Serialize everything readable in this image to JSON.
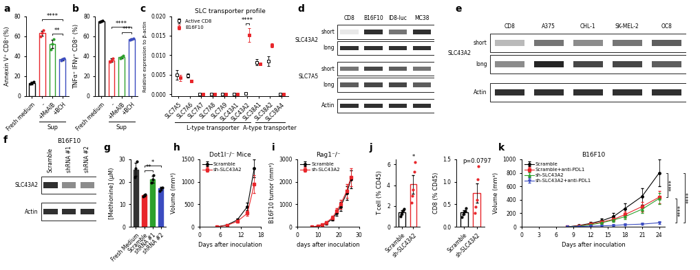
{
  "chart_data": [
    {
      "panel": "a",
      "type": "bar",
      "ylabel": "Annexin V⁺ CD8⁺(%)",
      "categories": [
        "Fresh medium",
        "-",
        "+MeAIB",
        "+BCH"
      ],
      "values": [
        13,
        63,
        52,
        37
      ],
      "errors": [
        1.5,
        2.5,
        4,
        1
      ],
      "points": [
        [
          12,
          13,
          14.5
        ],
        [
          60,
          63,
          66
        ],
        [
          47,
          52,
          57
        ],
        [
          36,
          37,
          38
        ]
      ],
      "colors": [
        "#000000",
        "#e8262b",
        "#2ca02c",
        "#3b4cc0"
      ],
      "ylim": [
        0,
        80
      ],
      "yticks": [
        0,
        20,
        40,
        60,
        80
      ],
      "group_labels": [
        {
          "text": "Sup",
          "from": 1,
          "to": 3
        }
      ],
      "significance": [
        {
          "from": 2,
          "to": 3,
          "text": "**"
        },
        {
          "from": 1,
          "to": 3,
          "text": "****"
        }
      ]
    },
    {
      "panel": "b",
      "type": "bar",
      "ylabel": "TNFα⁺ IFNγ⁺ CD8⁺ (%)",
      "categories": [
        "Fresh medium",
        "-",
        "+MeAIB",
        "+BCH"
      ],
      "values": [
        75,
        36,
        39,
        57
      ],
      "errors": [
        0.5,
        1.5,
        1,
        1
      ],
      "points": [
        [
          74.5,
          75,
          75.5
        ],
        [
          34,
          36,
          38
        ],
        [
          38,
          39,
          40.5
        ],
        [
          56,
          57,
          58
        ]
      ],
      "colors": [
        "#000000",
        "#e8262b",
        "#2ca02c",
        "#3b4cc0"
      ],
      "ylim": [
        0,
        80
      ],
      "yticks": [
        0,
        20,
        40,
        60,
        80
      ],
      "group_labels": [
        {
          "text": "Sup",
          "from": 1,
          "to": 3
        }
      ],
      "significance": [
        {
          "from": 2,
          "to": 3,
          "text": "***"
        },
        {
          "from": 1,
          "to": 3,
          "text": "****"
        }
      ]
    },
    {
      "panel": "c",
      "type": "scatter",
      "title": "SLC transporter profile",
      "ylabel": "Relative expression to β-actin",
      "categories": [
        "SLC7A5",
        "SLC7A6",
        "SLC7A7",
        "SLC7A8",
        "SLC7A9",
        "SLC43A1",
        "SLC43A2",
        "SLC38A1",
        "SLC38A2",
        "SLC38A4"
      ],
      "ylim": [
        -0.0005,
        0.02
      ],
      "yticks": [
        {
          "value": 0,
          "label": "0.000"
        },
        {
          "value": 0.005,
          "label": "0.005"
        },
        {
          "value": 0.01,
          "label": "0.010"
        },
        {
          "value": 0.015,
          "label": "0.015"
        },
        {
          "value": 0.02,
          "label": "0.020"
        }
      ],
      "legend": "upper left",
      "group_labels": [
        {
          "text": "L-type transporter",
          "from": 0,
          "to": 6
        },
        {
          "text": "A-type transporter",
          "from": 7,
          "to": 9
        }
      ],
      "significance": [
        {
          "from": 6,
          "to": 6,
          "text": "****"
        }
      ],
      "series": [
        {
          "name": "Active CD8",
          "color": "#000000",
          "marker": "square",
          "values": [
            0.005,
            0.0048,
            0.0001,
            0.0,
            0.0,
            0.0,
            0.0002,
            0.0082,
            0.0085,
            0.0
          ],
          "errors": [
            0.0012,
            0.0005,
            0.0001,
            0.0,
            0.0,
            0.0,
            0.0001,
            0.0008,
            0.0012,
            0.0
          ]
        },
        {
          "name": "B16F10",
          "color": "#e8262b",
          "marker": "square",
          "values": [
            0.0042,
            0.0034,
            0.0,
            0.0,
            0.0,
            0.0,
            0.0152,
            0.0077,
            0.0125,
            0.0
          ],
          "errors": [
            0.0008,
            0.0003,
            0.0,
            0.0,
            0.0,
            0.0,
            0.0018,
            0.0003,
            0.0005,
            0.0
          ]
        }
      ]
    },
    {
      "panel": "d",
      "type": "blot",
      "lanes": [
        "CD8",
        "B16F10",
        "ID8-luc",
        "MC38"
      ],
      "rows": [
        {
          "group": "SLC43A2",
          "label": "short",
          "intensities": [
            0.1,
            0.9,
            0.6,
            0.9
          ]
        },
        {
          "group": "SLC43A2",
          "label": "long",
          "intensities": [
            0.9,
            0.9,
            0.9,
            0.9
          ]
        },
        {
          "group": "SLC7A5",
          "label": "short",
          "intensities": [
            0.6,
            0.8,
            0.7,
            0.6
          ]
        },
        {
          "group": "SLC7A5",
          "label": "long",
          "intensities": [
            0.7,
            0.8,
            0.8,
            0.7
          ]
        },
        {
          "label": "Actin",
          "intensities": [
            0.9,
            0.9,
            0.9,
            0.9
          ]
        }
      ]
    },
    {
      "panel": "e",
      "type": "blot",
      "lanes": [
        "CD8",
        "A375",
        "CHL-1",
        "SK-MEL-2",
        "OC8"
      ],
      "rows": [
        {
          "group": "SLC43A2",
          "label": "short",
          "intensities": [
            0.3,
            0.6,
            0.5,
            0.6,
            0.7
          ]
        },
        {
          "group": "SLC43A2",
          "label": "long",
          "intensities": [
            0.5,
            0.95,
            0.8,
            0.8,
            0.7
          ]
        },
        {
          "label": "Actin",
          "intensities": [
            0.9,
            0.9,
            0.9,
            0.9,
            0.9
          ]
        }
      ]
    },
    {
      "panel": "f",
      "type": "blot",
      "title": "B16F10",
      "lanes": [
        "Scramble",
        "shRNA #1",
        "shRNA #2"
      ],
      "rows": [
        {
          "label": "SLC43A2",
          "intensities": [
            0.9,
            0.5,
            0.5
          ]
        },
        {
          "label": "Actin",
          "intensities": [
            0.9,
            0.9,
            0.9
          ]
        }
      ]
    },
    {
      "panel": "g",
      "type": "bar",
      "ylabel": "[Methionine] (μM)",
      "categories": [
        "Fresh Medium",
        "Scramble",
        "shRNA #1",
        "shRNA #2"
      ],
      "values": [
        25.5,
        14,
        21,
        17
      ],
      "errors": [
        3,
        0.5,
        1.5,
        0.7
      ],
      "points": [
        [
          22,
          26,
          29
        ],
        [
          13.5,
          14,
          14.5
        ],
        [
          19.5,
          21,
          23
        ],
        [
          16,
          17,
          17.5
        ]
      ],
      "colors": [
        "#333333",
        "#e8262b",
        "#2ca02c",
        "#3b4cc0"
      ],
      "ylim": [
        0,
        30
      ],
      "yticks": [
        0,
        10,
        20,
        30
      ],
      "significance": [
        {
          "from": 1,
          "to": 2,
          "text": "**"
        },
        {
          "from": 1,
          "to": 3,
          "text": "*"
        }
      ]
    },
    {
      "panel": "h",
      "type": "line",
      "title": "Dot1l⁻/⁻ Mice",
      "xlabel": "Days after inoculation",
      "ylabel": "Volume (mm³)",
      "xlim": [
        0,
        18
      ],
      "ylim": [
        0,
        1500
      ],
      "xticks": [
        0,
        6,
        12,
        18
      ],
      "yticks": [
        0,
        500,
        1000,
        1500
      ],
      "legend": "upper left",
      "series": [
        {
          "name": "Scramble",
          "color": "#000000",
          "marker": "circle",
          "x": [
            5,
            8,
            11,
            14,
            16
          ],
          "values": [
            0,
            40,
            150,
            450,
            1300
          ],
          "errors": [
            0,
            10,
            30,
            80,
            200
          ]
        },
        {
          "name": "sh-SLC43A2",
          "color": "#e8262b",
          "marker": "square",
          "x": [
            5,
            8,
            11,
            14,
            16
          ],
          "values": [
            0,
            30,
            120,
            300,
            950
          ],
          "errors": [
            0,
            10,
            30,
            60,
            200
          ]
        }
      ]
    },
    {
      "panel": "i",
      "type": "line",
      "title": "Rag1⁻/⁻",
      "xlabel": "days after inoculation",
      "ylabel": "B16F10 tumor (mm³)",
      "xlim": [
        0,
        30
      ],
      "ylim": [
        0,
        3000
      ],
      "xticks": [
        0,
        10,
        20,
        30
      ],
      "yticks": [
        0,
        1000,
        2000,
        3000
      ],
      "legend": "upper left",
      "series": [
        {
          "name": "Scramble",
          "color": "#000000",
          "marker": "circle",
          "x": [
            7,
            10,
            12,
            14,
            17,
            19,
            21,
            24,
            26
          ],
          "values": [
            0,
            30,
            80,
            150,
            350,
            600,
            900,
            1500,
            2100
          ],
          "errors": [
            0,
            10,
            20,
            40,
            80,
            120,
            200,
            300,
            400
          ]
        },
        {
          "name": "sh-SLC43A2",
          "color": "#e8262b",
          "marker": "square",
          "x": [
            7,
            10,
            12,
            14,
            17,
            19,
            21,
            24,
            26
          ],
          "values": [
            0,
            40,
            100,
            200,
            400,
            700,
            1000,
            1600,
            2200
          ],
          "errors": [
            0,
            10,
            20,
            40,
            80,
            120,
            200,
            300,
            400
          ]
        }
      ]
    },
    {
      "panel": "j",
      "type": "bar",
      "ylabel": "T cell (% CD45)",
      "categories": [
        "Scramble",
        "sh-SLC43A2"
      ],
      "values": [
        1.4,
        4.1
      ],
      "errors": [
        0.2,
        0.9
      ],
      "points": [
        [
          1.0,
          1.2,
          1.4,
          1.6,
          1.7
        ],
        [
          2.3,
          3.0,
          3.6,
          5.3,
          6.2
        ]
      ],
      "colors": [
        "#000000",
        "#e8262b"
      ],
      "ylim": [
        0,
        6.5
      ],
      "yticks": [
        0,
        2,
        4,
        6
      ],
      "annotations": [
        {
          "category": 1,
          "text": "*"
        }
      ]
    },
    {
      "type": "bar",
      "ylabel": "CD8 (% CD45)",
      "categories": [
        "Scramble",
        "sh-SLC43A2"
      ],
      "values": [
        0.32,
        0.75
      ],
      "errors": [
        0.05,
        0.22
      ],
      "points": [
        [
          0.22,
          0.28,
          0.33,
          0.36,
          0.41
        ],
        [
          0.3,
          0.45,
          0.6,
          1.05,
          1.35
        ]
      ],
      "colors": [
        "#000000",
        "#e8262b"
      ],
      "ylim": [
        0,
        1.5
      ],
      "yticks": [
        {
          "value": 0,
          "label": "0.0"
        },
        {
          "value": 0.5,
          "label": "0.5"
        },
        {
          "value": 1,
          "label": "1.0"
        },
        {
          "value": 1.5,
          "label": "1.5"
        }
      ],
      "annotations": [
        {
          "category": 1,
          "text": "p=0.0797"
        }
      ]
    },
    {
      "panel": "k",
      "type": "line",
      "title": "B16F10",
      "xlabel": "Days after inoculation",
      "ylabel": "Volume (mm³)",
      "xlim": [
        0,
        25
      ],
      "ylim": [
        0,
        1000
      ],
      "xticks": [
        0,
        3,
        6,
        9,
        12,
        15,
        18,
        21,
        24
      ],
      "yticks": [
        0,
        200,
        400,
        600,
        800,
        1000
      ],
      "legend": "upper left",
      "significance": [
        {
          "from": 0,
          "to": 1,
          "text": "****"
        },
        {
          "from": 2,
          "to": 3,
          "text": "****"
        },
        {
          "from": 0,
          "to": 3,
          "text": "****"
        }
      ],
      "series": [
        {
          "name": "Scramble",
          "color": "#000000",
          "marker": "circle",
          "x": [
            8,
            10,
            12,
            14,
            16,
            18,
            21,
            24
          ],
          "values": [
            0,
            20,
            50,
            90,
            150,
            270,
            450,
            800
          ],
          "errors": [
            0,
            10,
            20,
            30,
            50,
            80,
            120,
            200
          ]
        },
        {
          "name": "Scramble+anti-PDL1",
          "color": "#e8262b",
          "marker": "square",
          "x": [
            8,
            10,
            12,
            14,
            16,
            18,
            21,
            24
          ],
          "values": [
            0,
            15,
            40,
            70,
            110,
            180,
            300,
            440
          ],
          "errors": [
            0,
            5,
            10,
            20,
            30,
            50,
            70,
            90
          ]
        },
        {
          "name": "sh-SLC43A2",
          "color": "#2ca02c",
          "marker": "triangle",
          "x": [
            8,
            10,
            12,
            14,
            16,
            18,
            21,
            24
          ],
          "values": [
            0,
            10,
            30,
            60,
            100,
            150,
            260,
            420
          ],
          "errors": [
            0,
            5,
            10,
            20,
            30,
            40,
            60,
            80
          ]
        },
        {
          "name": "sh-SLC43A2+anti-PDL1",
          "color": "#3b4cc0",
          "marker": "triangle_down",
          "x": [
            8,
            10,
            12,
            14,
            16,
            18,
            21,
            24
          ],
          "values": [
            0,
            5,
            10,
            15,
            20,
            30,
            40,
            60
          ],
          "errors": [
            0,
            2,
            4,
            5,
            6,
            8,
            10,
            15
          ]
        }
      ]
    }
  ]
}
